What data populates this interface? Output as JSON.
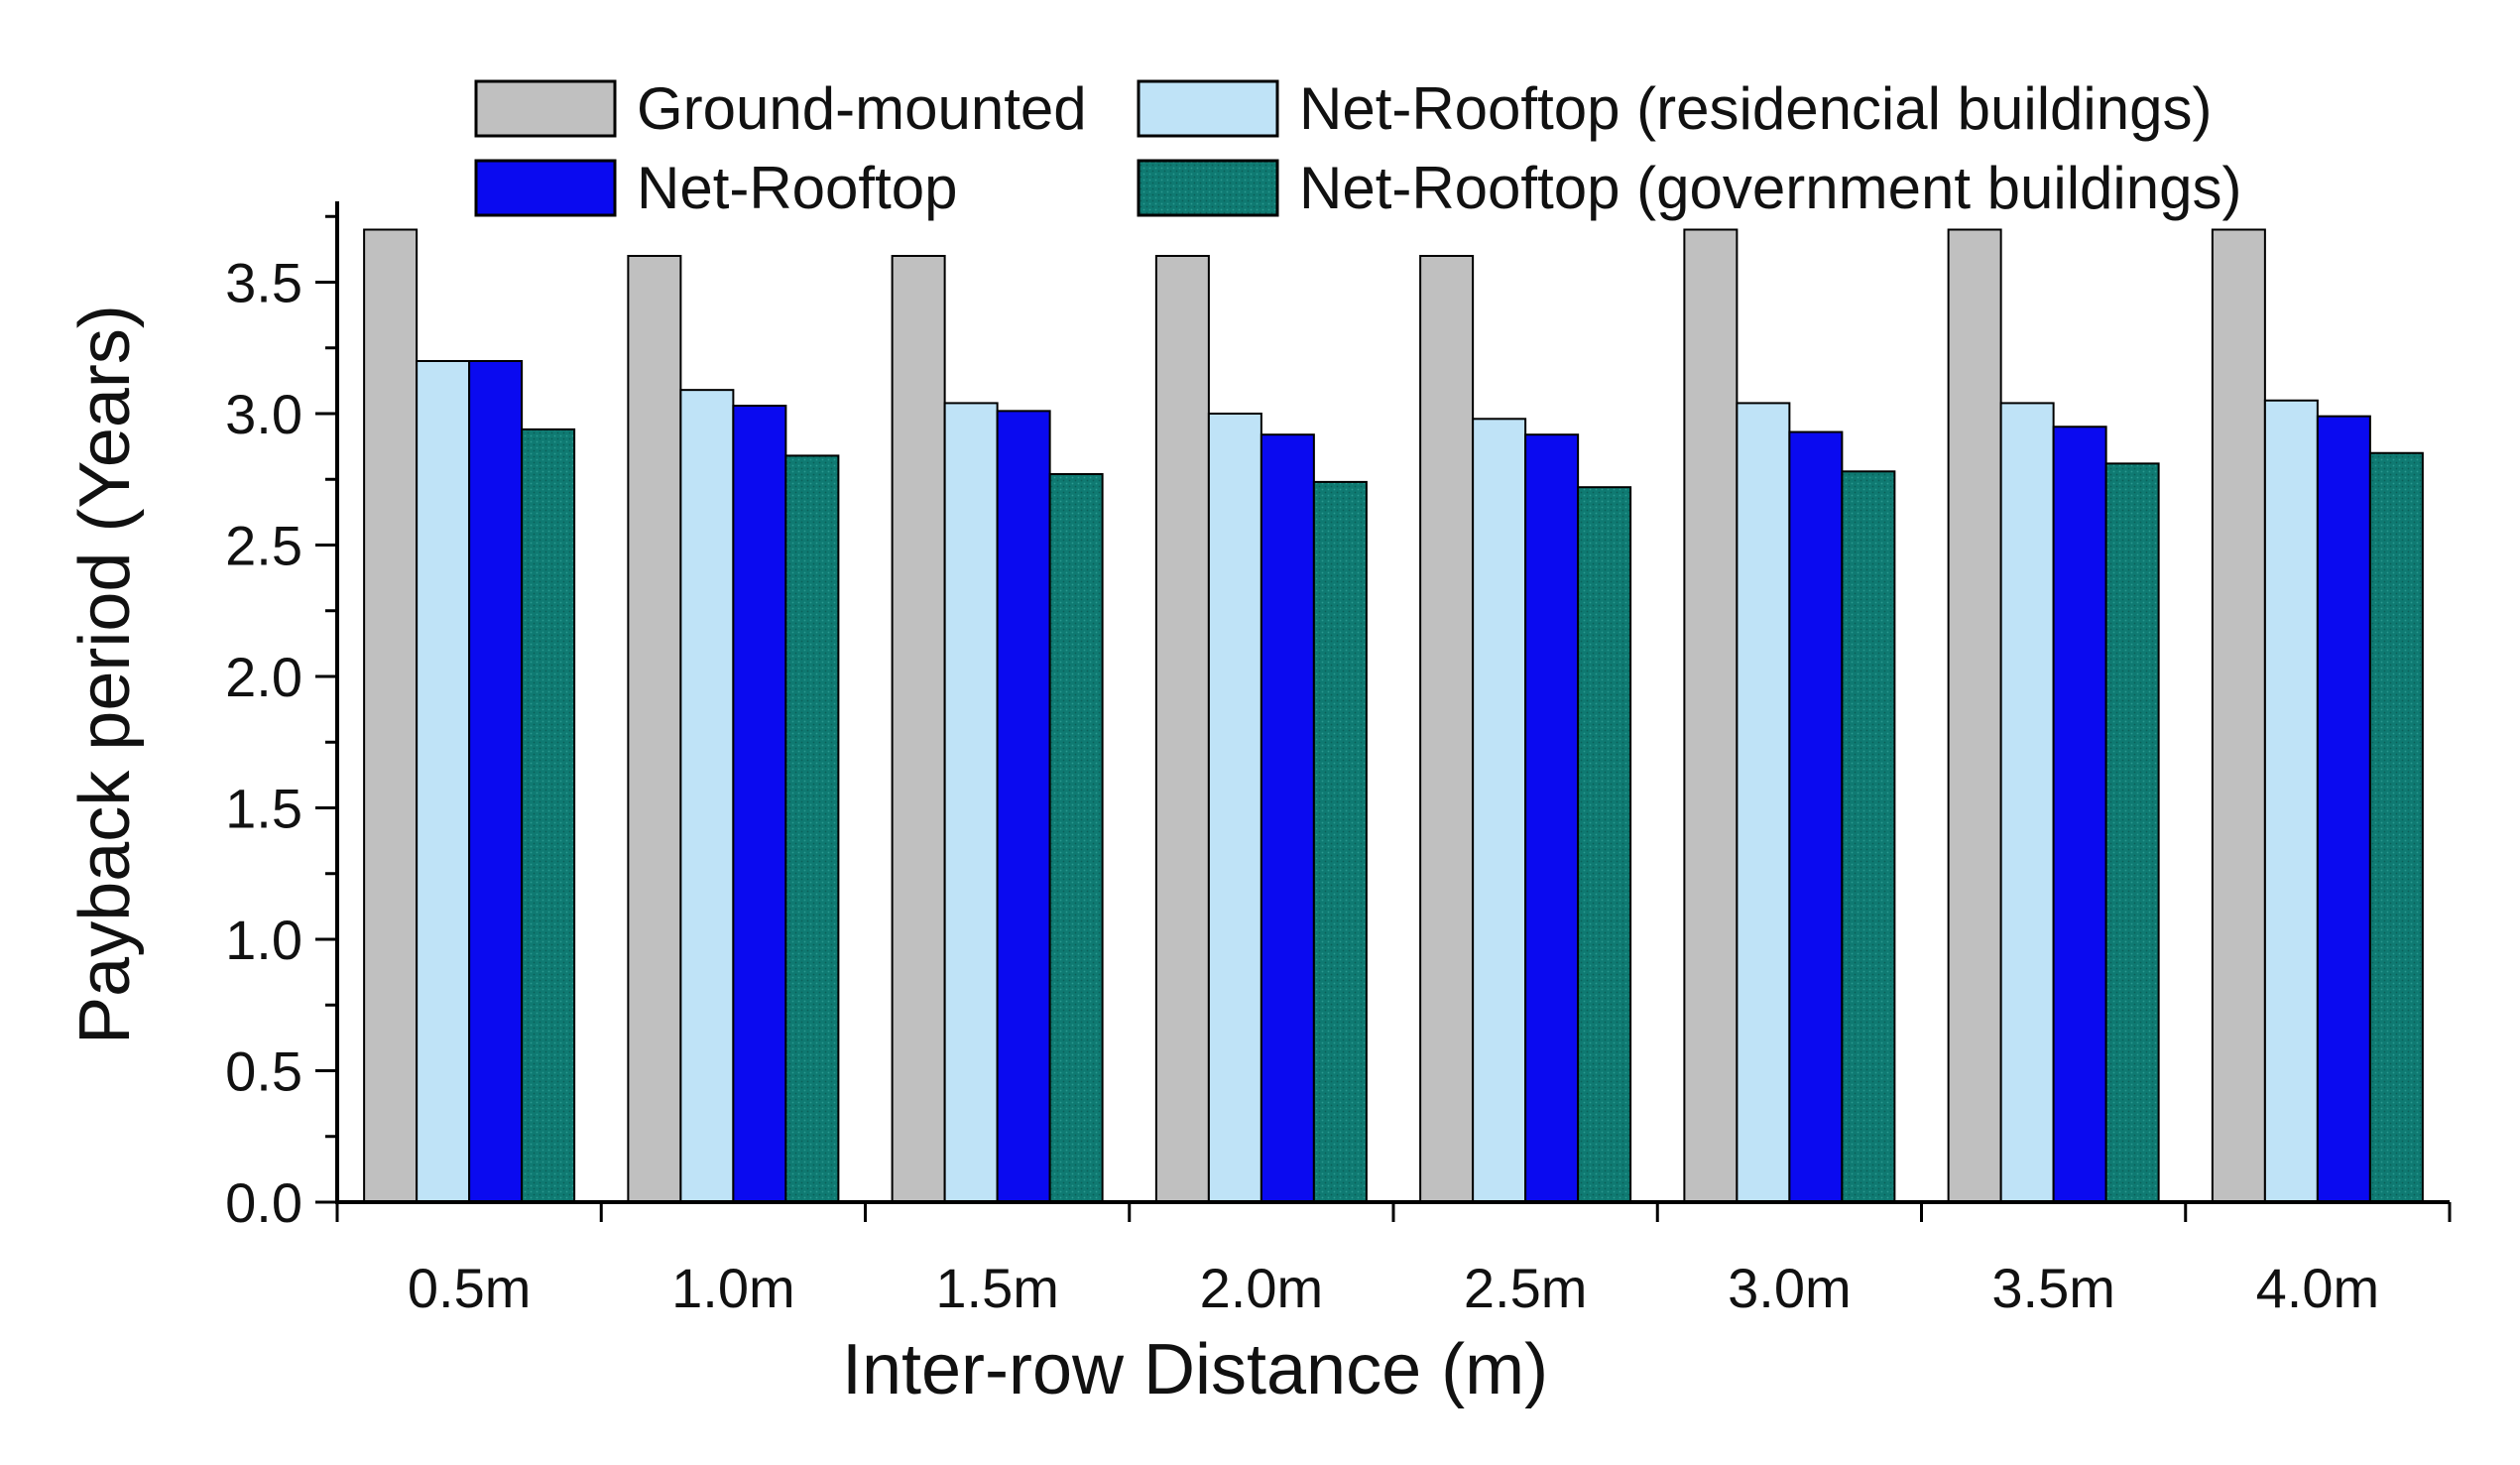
{
  "chart_data": {
    "type": "bar",
    "title": "",
    "xlabel": "Inter-row Distance (m)",
    "ylabel": "Payback period (Years)",
    "ylim": [
      0,
      3.8
    ],
    "yticks": [
      "0.0",
      "0.5",
      "1.0",
      "1.5",
      "2.0",
      "2.5",
      "3.0",
      "3.5"
    ],
    "categories": [
      "0.5m",
      "1.0m",
      "1.5m",
      "2.0m",
      "2.5m",
      "3.0m",
      "3.5m",
      "4.0m"
    ],
    "grid": false,
    "legend_position": "top",
    "series": [
      {
        "name": "Ground-mounted",
        "color": "#c0c0c0",
        "values": [
          3.7,
          3.6,
          3.6,
          3.6,
          3.6,
          3.7,
          3.7,
          3.7
        ]
      },
      {
        "name": "Net-Rooftop (residencial buildings)",
        "color": "#bfe3f7",
        "values": [
          3.2,
          3.09,
          3.04,
          3.0,
          2.98,
          3.04,
          3.04,
          3.05
        ]
      },
      {
        "name": "Net-Rooftop",
        "color": "#0a0af0",
        "values": [
          3.2,
          3.03,
          3.01,
          2.92,
          2.92,
          2.93,
          2.95,
          2.99
        ]
      },
      {
        "name": "Net-Rooftop (government buildings)",
        "color": "#0f7a72",
        "values": [
          2.94,
          2.84,
          2.77,
          2.74,
          2.72,
          2.78,
          2.81,
          2.85
        ]
      }
    ]
  }
}
